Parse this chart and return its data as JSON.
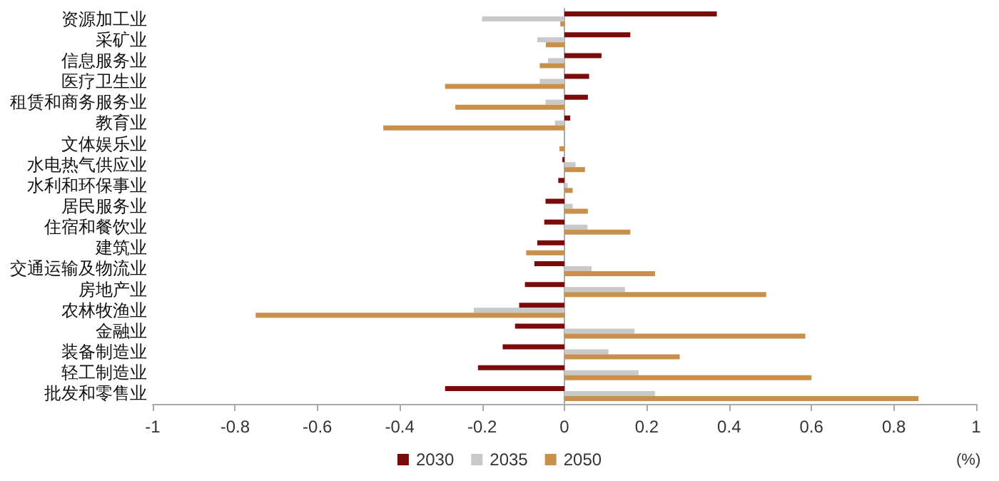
{
  "chart_data": {
    "type": "bar",
    "orientation": "horizontal",
    "xlabel": "(%)",
    "categories": [
      "资源加工业",
      "采矿业",
      "信息服务业",
      "医疗卫生业",
      "租赁和商务服务业",
      "教育业",
      "文体娱乐业",
      "水电热气供应业",
      "水利和环保事业",
      "居民服务业",
      "住宿和餐饮业",
      "建筑业",
      "交通运输及物流业",
      "房地产业",
      "农林牧渔业",
      "金融业",
      "装备制造业",
      "轻工制造业",
      "批发和零售业"
    ],
    "series": [
      {
        "name": "2030",
        "color": "#7b0a0a",
        "values": [
          0.37,
          0.16,
          0.09,
          0.06,
          0.057,
          0.014,
          0,
          -0.005,
          -0.015,
          -0.046,
          -0.049,
          -0.066,
          -0.073,
          -0.096,
          -0.11,
          -0.12,
          -0.15,
          -0.21,
          -0.29
        ]
      },
      {
        "name": "2035",
        "color": "#c9c9c9",
        "values": [
          -0.2,
          -0.066,
          -0.04,
          -0.06,
          -0.046,
          -0.023,
          null,
          0.027,
          0.008,
          0.02,
          0.056,
          0,
          0.066,
          0.147,
          -0.22,
          0.17,
          0.107,
          0.18,
          0.22
        ]
      },
      {
        "name": "2050",
        "color": "#c8904a",
        "values": [
          -0.01,
          -0.045,
          -0.06,
          -0.29,
          -0.265,
          -0.44,
          -0.012,
          0.05,
          0.02,
          0.057,
          0.16,
          -0.093,
          0.22,
          0.49,
          -0.75,
          0.585,
          0.28,
          0.6,
          0.86
        ]
      }
    ],
    "xlim": [
      -1,
      1
    ],
    "xticks": [
      -1,
      -0.8,
      -0.6,
      -0.4,
      -0.2,
      0,
      0.2,
      0.4,
      0.6,
      0.8,
      1
    ],
    "legend": "bottom"
  }
}
